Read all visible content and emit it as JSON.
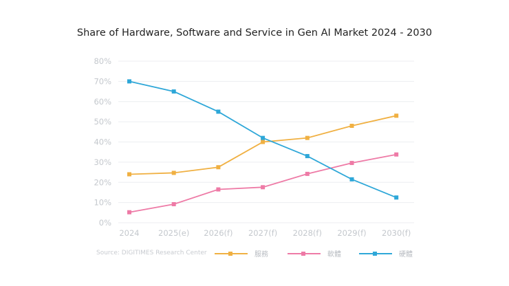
{
  "chart_data": {
    "type": "line",
    "title": "Share of Hardware, Software and Service in Gen AI Market 2024 - 2030",
    "categories": [
      "2024",
      "2025(e)",
      "2026(f)",
      "2027(f)",
      "2028(f)",
      "2029(f)",
      "2030(f)"
    ],
    "yticks": [
      "0%",
      "10%",
      "20%",
      "30%",
      "40%",
      "50%",
      "60%",
      "70%",
      "80%"
    ],
    "ylim": [
      0,
      80
    ],
    "grid": true,
    "legend_placement": "bottom",
    "series": [
      {
        "name": "服務",
        "color": "#f0b042",
        "values": [
          24,
          24.7,
          27.5,
          40,
          42,
          48,
          53
        ]
      },
      {
        "name": "軟體",
        "color": "#ee7aa6",
        "values": [
          5.2,
          9.2,
          16.5,
          17.6,
          24.2,
          29.6,
          33.8
        ]
      },
      {
        "name": "硬體",
        "color": "#2ea7d8",
        "values": [
          70,
          65,
          55,
          42,
          33,
          21.5,
          12.5
        ]
      }
    ],
    "source": "Source: DIGITIMES Research Center"
  }
}
